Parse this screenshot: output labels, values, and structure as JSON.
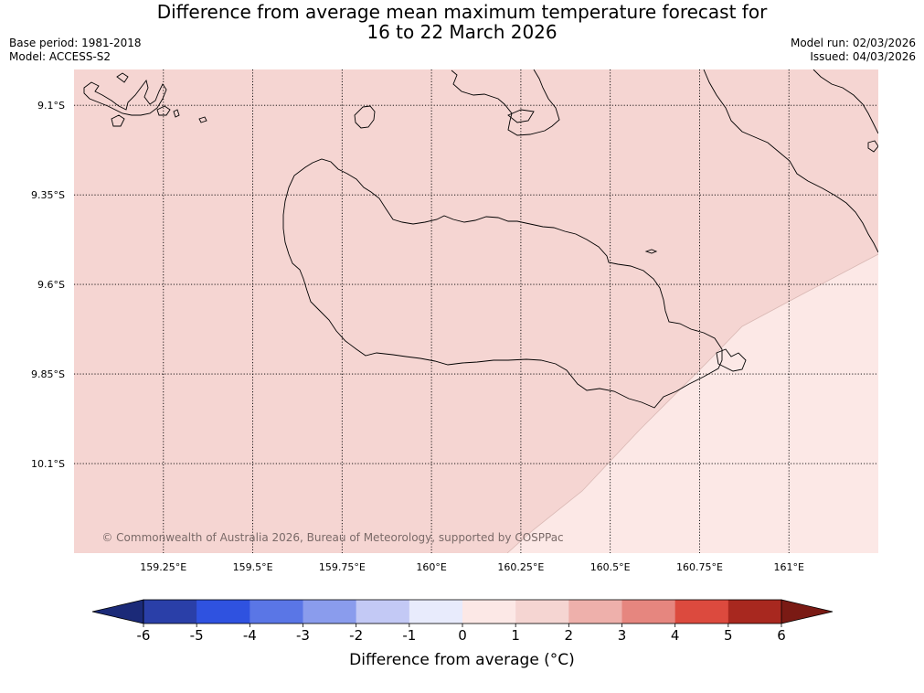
{
  "title": {
    "line1": "Difference from average mean maximum temperature forecast for",
    "line2": "16 to 22 March 2026"
  },
  "meta": {
    "base_period": "Base period: 1981-2018",
    "model": "Model: ACCESS-S2",
    "model_run": "Model run: 02/03/2026",
    "issued": "Issued: 04/03/2026"
  },
  "map": {
    "lon_range": [
      159.0,
      161.25
    ],
    "lat_range": [
      -10.35,
      -9.0
    ],
    "lon_ticks": [
      {
        "value": 159.25,
        "label": "159.25°E"
      },
      {
        "value": 159.5,
        "label": "159.5°E"
      },
      {
        "value": 159.75,
        "label": "159.75°E"
      },
      {
        "value": 160.0,
        "label": "160°E"
      },
      {
        "value": 160.25,
        "label": "160.25°E"
      },
      {
        "value": 160.5,
        "label": "160.5°E"
      },
      {
        "value": 160.75,
        "label": "160.75°E"
      },
      {
        "value": 161.0,
        "label": "161°E"
      }
    ],
    "lat_ticks": [
      {
        "value": -9.1,
        "label": "9.1°S"
      },
      {
        "value": -9.35,
        "label": "9.35°S"
      },
      {
        "value": -9.6,
        "label": "9.6°S"
      },
      {
        "value": -9.85,
        "label": "9.85°S"
      },
      {
        "value": -10.1,
        "label": "10.1°S"
      }
    ],
    "gridlines": true,
    "main_anomaly_band": "1 to 2",
    "secondary_anomaly_band": "0 to 1",
    "copyright": "© Commonwealth of Australia 2026, Bureau of Meteorology, supported by COSPPac"
  },
  "colorbar": {
    "label": "Difference from average (°C)",
    "ticks": [
      "-6",
      "-5",
      "-4",
      "-3",
      "-2",
      "-1",
      "0",
      "1",
      "2",
      "3",
      "4",
      "5",
      "6"
    ],
    "under_color": "#1b2a78",
    "over_color": "#7a1a14",
    "colors": [
      "#2a3fa8",
      "#2f52e0",
      "#5a76e6",
      "#8a9ced",
      "#c3c9f5",
      "#e8ebfc",
      "#fce8e6",
      "#f5d5d2",
      "#eeb0ab",
      "#e6867f",
      "#dc4a3e",
      "#a8281f"
    ]
  },
  "colors": {
    "band_1_2": "#f5d5d2",
    "band_0_1": "#fce8e6",
    "coast": "#000000"
  }
}
